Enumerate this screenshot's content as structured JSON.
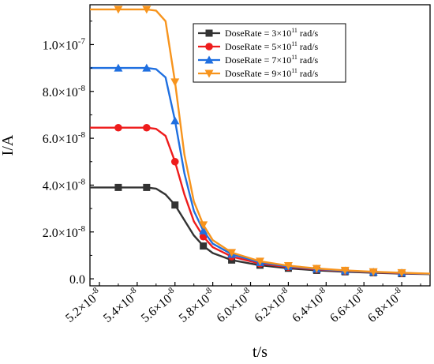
{
  "chart_data": {
    "type": "line",
    "title": "",
    "xlabel": "t/s",
    "ylabel": "I/A",
    "xlim": [
      5.15e-08,
      6.95e-08
    ],
    "ylim": [
      -3e-09,
      1.17e-07
    ],
    "grid": false,
    "legend_position": "top-right",
    "x_ticks": [
      {
        "value": 5.2e-08,
        "mantissa": "5.2",
        "exp": "-8"
      },
      {
        "value": 5.4e-08,
        "mantissa": "5.4",
        "exp": "-8"
      },
      {
        "value": 5.6e-08,
        "mantissa": "5.6",
        "exp": "-8"
      },
      {
        "value": 5.8e-08,
        "mantissa": "5.8",
        "exp": "-8"
      },
      {
        "value": 6e-08,
        "mantissa": "6.0",
        "exp": "-8"
      },
      {
        "value": 6.2e-08,
        "mantissa": "6.2",
        "exp": "-8"
      },
      {
        "value": 6.4e-08,
        "mantissa": "6.4",
        "exp": "-8"
      },
      {
        "value": 6.6e-08,
        "mantissa": "6.6",
        "exp": "-8"
      },
      {
        "value": 6.8e-08,
        "mantissa": "6.8",
        "exp": "-8"
      }
    ],
    "y_ticks": [
      {
        "value": 0,
        "mantissa": "0.0",
        "exp": ""
      },
      {
        "value": 2e-08,
        "mantissa": "2.0",
        "exp": "-8"
      },
      {
        "value": 4e-08,
        "mantissa": "4.0",
        "exp": "-8"
      },
      {
        "value": 6e-08,
        "mantissa": "6.0",
        "exp": "-8"
      },
      {
        "value": 8e-08,
        "mantissa": "8.0",
        "exp": "-8"
      },
      {
        "value": 1e-07,
        "mantissa": "1.0",
        "exp": "-7"
      }
    ],
    "series": [
      {
        "name": "DoseRate = 3×10¹¹ rad/s",
        "label_prefix": "DoseRate = 3×10",
        "label_exp": "11",
        "label_suffix": " rad/s",
        "color": "#333333",
        "marker": "square",
        "x": [
          5.15e-08,
          5.3e-08,
          5.45e-08,
          5.5e-08,
          5.55e-08,
          5.6e-08,
          5.65e-08,
          5.7e-08,
          5.75e-08,
          5.8e-08,
          5.9e-08,
          6.05e-08,
          6.2e-08,
          6.35e-08,
          6.5e-08,
          6.65e-08,
          6.8e-08,
          6.95e-08
        ],
        "y": [
          3.9e-08,
          3.9e-08,
          3.9e-08,
          3.85e-08,
          3.6e-08,
          3.15e-08,
          2.5e-08,
          1.85e-08,
          1.4e-08,
          1.1e-08,
          8e-09,
          5.8e-09,
          4.5e-09,
          3.6e-09,
          3e-09,
          2.6e-09,
          2.2e-09,
          2e-09
        ],
        "markers_x": [
          5.3e-08,
          5.45e-08,
          5.6e-08,
          5.75e-08,
          5.9e-08,
          6.05e-08,
          6.2e-08,
          6.35e-08,
          6.5e-08,
          6.65e-08,
          6.8e-08
        ],
        "markers_y": [
          3.9e-08,
          3.9e-08,
          3.15e-08,
          1.4e-08,
          8e-09,
          5.8e-09,
          4.5e-09,
          3.6e-09,
          3e-09,
          2.6e-09,
          2.2e-09
        ]
      },
      {
        "name": "DoseRate = 5×10¹¹ rad/s",
        "label_prefix": "DoseRate = 5×10",
        "label_exp": "11",
        "label_suffix": " rad/s",
        "color": "#ee1c1c",
        "marker": "circle",
        "x": [
          5.15e-08,
          5.3e-08,
          5.45e-08,
          5.5e-08,
          5.55e-08,
          5.6e-08,
          5.65e-08,
          5.7e-08,
          5.75e-08,
          5.8e-08,
          5.9e-08,
          6.05e-08,
          6.2e-08,
          6.35e-08,
          6.5e-08,
          6.65e-08,
          6.8e-08,
          6.95e-08
        ],
        "y": [
          6.45e-08,
          6.45e-08,
          6.45e-08,
          6.4e-08,
          6.1e-08,
          5e-08,
          3.6e-08,
          2.45e-08,
          1.8e-08,
          1.35e-08,
          9.5e-09,
          6.5e-09,
          5e-09,
          4e-09,
          3.3e-09,
          2.8e-09,
          2.4e-09,
          2.1e-09
        ],
        "markers_x": [
          5.3e-08,
          5.45e-08,
          5.6e-08,
          5.75e-08,
          5.9e-08,
          6.05e-08,
          6.2e-08,
          6.35e-08,
          6.5e-08,
          6.65e-08,
          6.8e-08
        ],
        "markers_y": [
          6.45e-08,
          6.45e-08,
          5e-08,
          1.8e-08,
          9.5e-09,
          6.5e-09,
          5e-09,
          4e-09,
          3.3e-09,
          2.8e-09,
          2.4e-09
        ]
      },
      {
        "name": "DoseRate = 7×10¹¹ rad/s",
        "label_prefix": "DoseRate = 7×10",
        "label_exp": "11",
        "label_suffix": " rad/s",
        "color": "#1f6fe0",
        "marker": "triangle",
        "x": [
          5.15e-08,
          5.3e-08,
          5.45e-08,
          5.5e-08,
          5.55e-08,
          5.6e-08,
          5.65e-08,
          5.7e-08,
          5.75e-08,
          5.8e-08,
          5.9e-08,
          6.05e-08,
          6.2e-08,
          6.35e-08,
          6.5e-08,
          6.65e-08,
          6.8e-08,
          6.95e-08
        ],
        "y": [
          9e-08,
          9e-08,
          9e-08,
          8.95e-08,
          8.6e-08,
          6.75e-08,
          4.5e-08,
          2.9e-08,
          2.05e-08,
          1.5e-08,
          1.05e-08,
          7e-09,
          5.3e-09,
          4.2e-09,
          3.4e-09,
          2.9e-09,
          2.5e-09,
          2.1e-09
        ],
        "markers_x": [
          5.3e-08,
          5.45e-08,
          5.6e-08,
          5.75e-08,
          5.9e-08,
          6.05e-08,
          6.2e-08,
          6.35e-08,
          6.5e-08,
          6.65e-08,
          6.8e-08
        ],
        "markers_y": [
          9e-08,
          9e-08,
          6.75e-08,
          2.05e-08,
          1.05e-08,
          7e-09,
          5.3e-09,
          4.2e-09,
          3.4e-09,
          2.9e-09,
          2.5e-09
        ]
      },
      {
        "name": "DoseRate = 9×10¹¹ rad/s",
        "label_prefix": "DoseRate = 9×10",
        "label_exp": "11",
        "label_suffix": " rad/s",
        "color": "#f7941d",
        "marker": "triangle-down",
        "x": [
          5.15e-08,
          5.3e-08,
          5.45e-08,
          5.5e-08,
          5.55e-08,
          5.6e-08,
          5.65e-08,
          5.7e-08,
          5.75e-08,
          5.8e-08,
          5.9e-08,
          6.05e-08,
          6.2e-08,
          6.35e-08,
          6.5e-08,
          6.65e-08,
          6.8e-08,
          6.95e-08
        ],
        "y": [
          1.15e-07,
          1.15e-07,
          1.15e-07,
          1.145e-07,
          1.1e-07,
          8.4e-08,
          5.3e-08,
          3.3e-08,
          2.3e-08,
          1.65e-08,
          1.12e-08,
          7.5e-09,
          5.6e-09,
          4.4e-09,
          3.6e-09,
          3e-09,
          2.6e-09,
          2.2e-09
        ],
        "markers_x": [
          5.3e-08,
          5.45e-08,
          5.6e-08,
          5.75e-08,
          5.9e-08,
          6.05e-08,
          6.2e-08,
          6.35e-08,
          6.5e-08,
          6.65e-08,
          6.8e-08
        ],
        "markers_y": [
          1.15e-07,
          1.15e-07,
          8.4e-08,
          2.3e-08,
          1.12e-08,
          7.5e-09,
          5.6e-09,
          4.4e-09,
          3.6e-09,
          3e-09,
          2.6e-09
        ]
      }
    ]
  }
}
